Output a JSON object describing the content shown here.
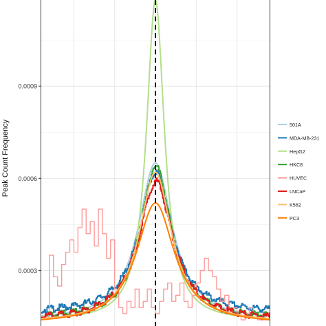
{
  "chart_data": {
    "type": "line",
    "title": "",
    "xlabel": "",
    "ylabel": "Peak Count Frequency",
    "ylim": [
      0.00012,
      0.00118
    ],
    "y_ticks": [
      0.0003,
      0.0006,
      0.0009
    ],
    "y_tick_labels": [
      "0.0003",
      "0.0006",
      "0.0009"
    ],
    "x_ticks": [
      -1000,
      -500,
      0,
      500,
      1000
    ],
    "x_tick_labels": [
      "",
      "",
      "",
      "",
      ""
    ],
    "xlim": [
      -1400,
      1400
    ],
    "center_line": 0,
    "grid": true,
    "legend_position": "right",
    "series": [
      {
        "name": "501A",
        "color": "#a6cee3",
        "style": "smooth",
        "peak": 0.00065,
        "width": 380,
        "base": 0.000135
      },
      {
        "name": "MDA-MB-231",
        "color": "#1f78b4",
        "style": "noisy",
        "peak": 0.00062,
        "width": 360,
        "base": 0.00016
      },
      {
        "name": "HepG2",
        "color": "#b2df8a",
        "style": "smooth",
        "peak": 0.00118,
        "width": 200,
        "base": 0.000135
      },
      {
        "name": "HKC8",
        "color": "#33a02c",
        "style": "noisy",
        "peak": 0.00064,
        "width": 340,
        "base": 0.00014
      },
      {
        "name": "HUVEC",
        "color": "#fb9a99",
        "style": "step",
        "x": [
          -1400,
          -1300,
          -1250,
          -1200,
          -1150,
          -1100,
          -1050,
          -1000,
          -950,
          -900,
          -850,
          -800,
          -750,
          -700,
          -650,
          -600,
          -550,
          -500,
          -450,
          -400,
          -350,
          -300,
          -250,
          -200,
          -150,
          -100,
          -50,
          0,
          50,
          100,
          150,
          200,
          250,
          300,
          350,
          400,
          450,
          500,
          550,
          600,
          650,
          700,
          750,
          800,
          850,
          900,
          950,
          1000,
          1050,
          1100,
          1150,
          1200,
          1250,
          1300,
          1400
        ],
        "y": [
          0.00015,
          0.00035,
          0.00028,
          0.00025,
          0.00032,
          0.00036,
          0.0004,
          0.00036,
          0.00044,
          0.0005,
          0.00042,
          0.00046,
          0.00038,
          0.0005,
          0.00042,
          0.00034,
          0.0004,
          0.00024,
          0.00018,
          0.00016,
          0.0002,
          0.00018,
          0.00024,
          0.00018,
          0.0002,
          0.00024,
          0.00018,
          0.00016,
          0.0002,
          0.00024,
          0.00026,
          0.0002,
          0.00022,
          0.00026,
          0.0002,
          0.00018,
          0.00022,
          0.00026,
          0.0003,
          0.00034,
          0.0003,
          0.00028,
          0.00024,
          0.0002,
          0.00022,
          0.00016,
          0.00018,
          0.00016,
          0.00014,
          0.00016,
          0.00018,
          0.00016,
          0.00014,
          0.00014,
          0.00014
        ]
      },
      {
        "name": "LNCaP",
        "color": "#e31a1c",
        "style": "noisy",
        "peak": 0.00059,
        "width": 380,
        "base": 0.000135
      },
      {
        "name": "K562",
        "color": "#fdbf6f",
        "style": "smooth",
        "peak": 0.00062,
        "width": 360,
        "base": 0.00013
      },
      {
        "name": "PC3",
        "color": "#ff7f00",
        "style": "smooth",
        "peak": 0.00052,
        "width": 420,
        "base": 0.000125
      }
    ]
  }
}
